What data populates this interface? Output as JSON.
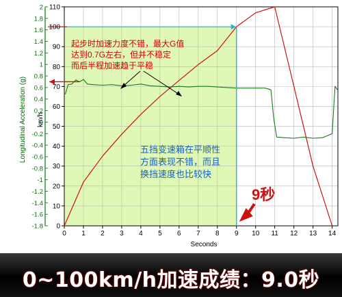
{
  "chart_data": {
    "type": "line",
    "xlabel": "Seconds",
    "y_left_label": "Longitudinal Acceleration (g)",
    "y_right_label": "km/h",
    "xlim": [
      0,
      14.3
    ],
    "x_ticks": [
      "0",
      "1",
      "2",
      "3",
      "4",
      "5",
      "6",
      "7",
      "8",
      "9",
      "10",
      "11",
      "12",
      "13",
      "14"
    ],
    "speed_axis": {
      "range": [
        0,
        110
      ],
      "ticks": [
        "0",
        "10",
        "20",
        "30",
        "40",
        "50",
        "60",
        "70",
        "80",
        "90",
        "100",
        "110"
      ]
    },
    "accel_axis": {
      "range": [
        -1.8,
        2
      ],
      "ticks": [
        "2",
        "1.8",
        "1.6",
        "1.4",
        "1.2",
        "1",
        "0.8",
        "0.6",
        "0.4",
        "0.2",
        "0",
        "-0.2",
        "-0.4",
        "-0.6",
        "-0.8",
        "-1",
        "-1.2",
        "-1.4",
        "-1.6",
        "-1.8"
      ]
    },
    "grid": true,
    "series": [
      {
        "key": "speed",
        "color": "#cc1111",
        "x": [
          0,
          1,
          2,
          3,
          4,
          5,
          6,
          7,
          8,
          9,
          10,
          11,
          12,
          13,
          14
        ],
        "y": [
          0,
          22,
          35,
          46,
          56,
          65,
          73,
          81,
          88,
          100,
          107,
          110,
          70,
          30,
          0
        ]
      },
      {
        "key": "acceleration",
        "color": "#1a7a1a",
        "x": [
          0.05,
          0.2,
          0.4,
          0.6,
          0.8,
          1.0,
          1.2,
          1.5,
          2.0,
          2.5,
          3.0,
          3.5,
          4.0,
          4.5,
          5.0,
          5.5,
          6.0,
          6.5,
          7.0,
          7.5,
          8.0,
          8.5,
          9.0,
          9.5,
          10.0,
          10.5,
          10.8,
          10.95,
          11.1,
          11.5,
          12.0,
          12.5,
          13.0,
          13.5,
          14.0,
          14.15,
          14.3
        ],
        "y": [
          0.48,
          0.65,
          0.66,
          0.73,
          0.7,
          0.74,
          0.66,
          0.65,
          0.64,
          0.65,
          0.63,
          0.64,
          0.66,
          0.63,
          0.62,
          0.61,
          0.62,
          0.61,
          0.62,
          0.62,
          0.61,
          0.6,
          0.59,
          0.59,
          0.59,
          0.59,
          0.56,
          0.05,
          -0.26,
          -0.27,
          -0.28,
          -0.26,
          -0.28,
          -0.27,
          -0.2,
          0.62,
          0.55
        ]
      }
    ],
    "callouts": {
      "top": [
        "起步时加速力度不错，最大G值",
        "达到0.7G左右，但并不稳定",
        "而后半程加速趋于平稳"
      ],
      "middle": [
        "五挡变速箱在平顺性",
        "方面表现不错，而且",
        "换挡速度也比较快"
      ],
      "time_label": "9秒"
    },
    "highlight_color": "#d9f7a8"
  },
  "banner": {
    "text": "0~100km/h加速成绩：9.0秒"
  }
}
